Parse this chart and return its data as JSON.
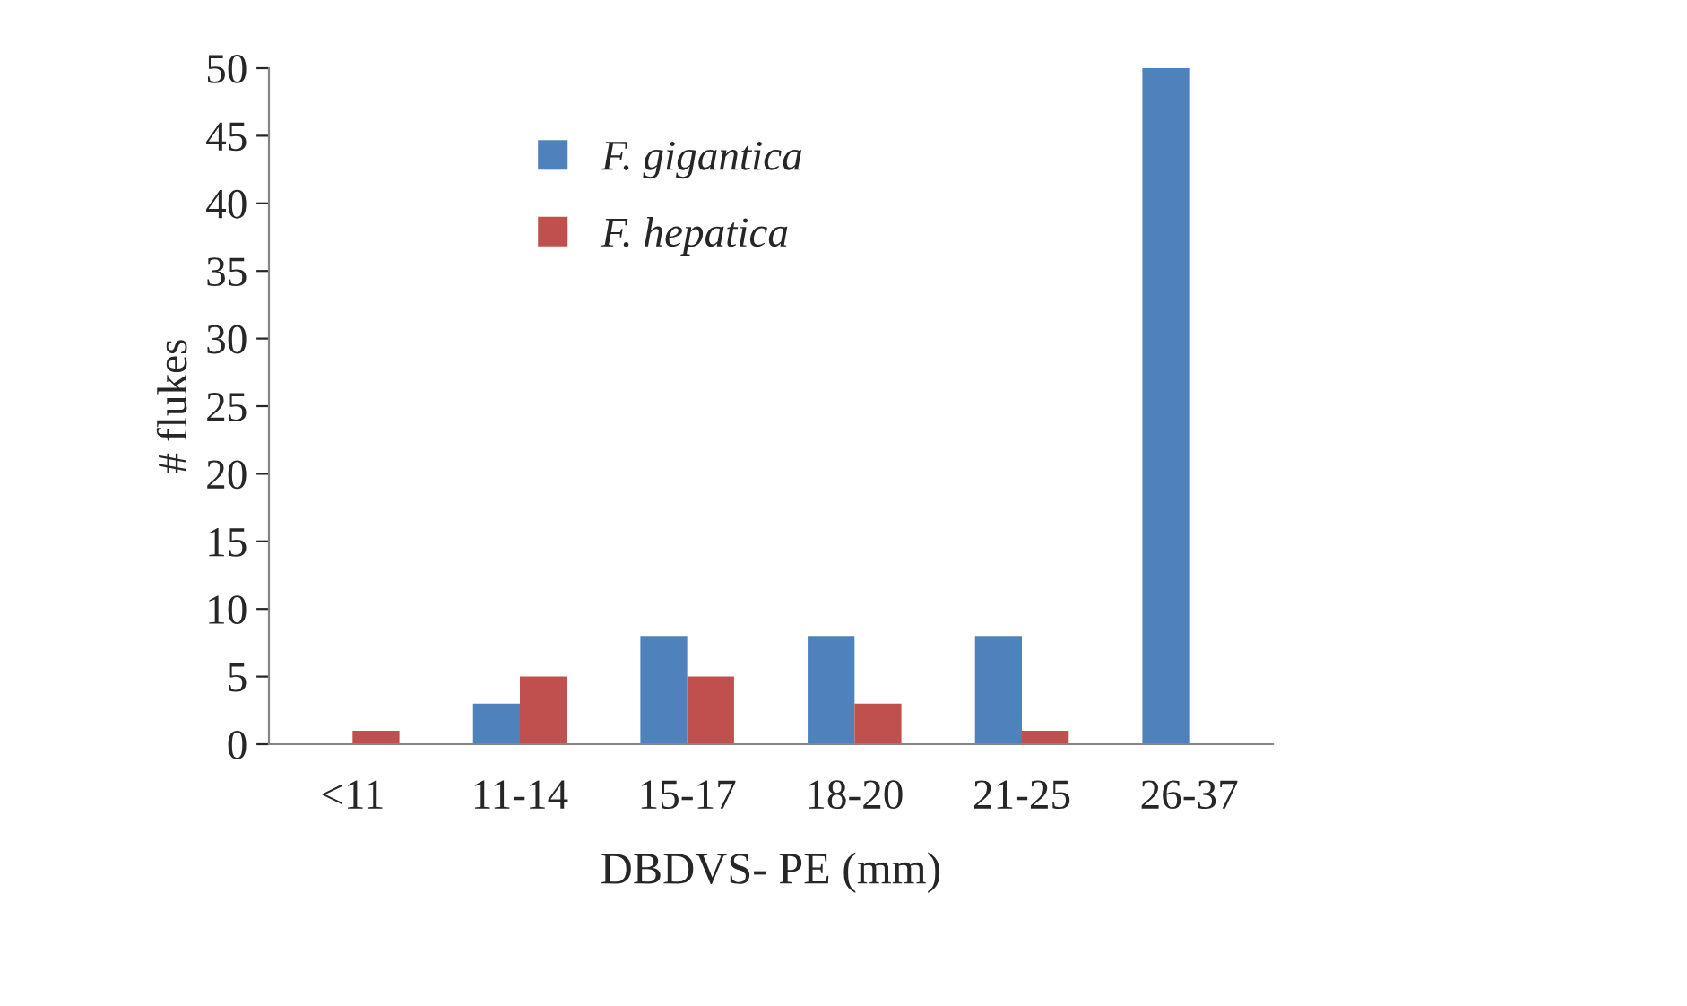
{
  "chart_data": {
    "type": "bar",
    "xlabel": "DBDVS- PE (mm)",
    "ylabel": "# flukes",
    "categories": [
      "<11",
      "11-14",
      "15-17",
      "18-20",
      "21-25",
      "26-37"
    ],
    "series": [
      {
        "name": "F. gigantica",
        "color": "#4f81bd",
        "values": [
          0,
          3,
          8,
          8,
          8,
          50
        ]
      },
      {
        "name": "F. hepatica",
        "color": "#c0504d",
        "values": [
          1,
          5,
          5,
          3,
          1,
          0
        ]
      }
    ],
    "ylim": [
      0,
      50
    ],
    "yticks": [
      0,
      5,
      10,
      15,
      20,
      25,
      30,
      35,
      40,
      45,
      50
    ],
    "grid": false,
    "legend": "top"
  }
}
